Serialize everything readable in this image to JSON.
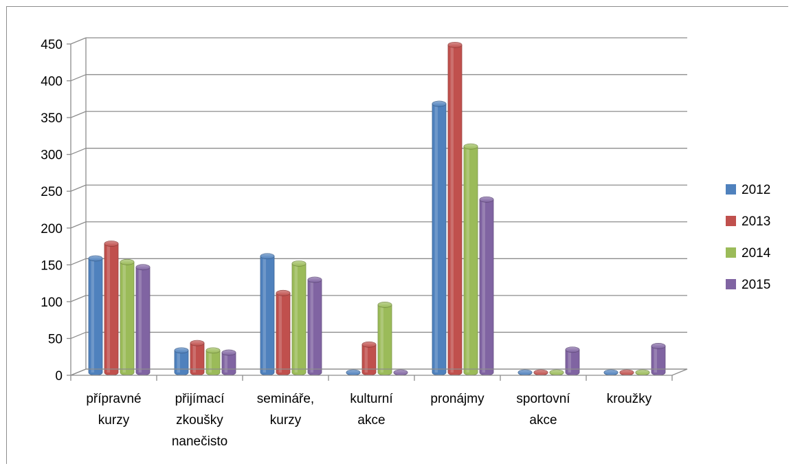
{
  "chart_data": {
    "type": "bar",
    "title": "",
    "xlabel": "",
    "ylabel": "",
    "ylim": [
      0,
      450
    ],
    "yticks": [
      0,
      50,
      100,
      150,
      200,
      250,
      300,
      350,
      400,
      450
    ],
    "grid": true,
    "legend_position": "right",
    "categories": [
      [
        "přípravné",
        "kurzy"
      ],
      [
        "přijímací",
        "zkoušky",
        "nanečisto"
      ],
      [
        "semináře,",
        "kurzy"
      ],
      [
        "kulturní",
        "akce"
      ],
      [
        "pronájmy"
      ],
      [
        "sportovní",
        "akce"
      ],
      [
        "kroužky"
      ]
    ],
    "series": [
      {
        "name": "2012",
        "color": "#4f81bd",
        "values": [
          155,
          30,
          158,
          0,
          365,
          0,
          0
        ]
      },
      {
        "name": "2013",
        "color": "#c0504d",
        "values": [
          175,
          40,
          108,
          38,
          445,
          0,
          0
        ]
      },
      {
        "name": "2014",
        "color": "#9bbb59",
        "values": [
          150,
          30,
          148,
          92,
          307,
          0,
          0
        ]
      },
      {
        "name": "2015",
        "color": "#8064a2",
        "values": [
          143,
          27,
          126,
          0,
          235,
          31,
          36
        ]
      }
    ]
  }
}
